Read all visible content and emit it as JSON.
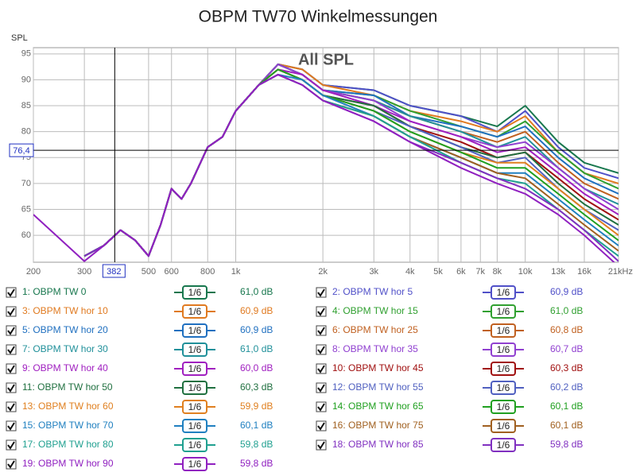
{
  "chart_data": {
    "type": "line",
    "title": "OBPM TW70 Winkelmessungen",
    "y_label": "SPL",
    "annotation": "All SPL",
    "xscale": "log",
    "grid": true,
    "xlim": [
      200,
      21000
    ],
    "ylim": [
      54.8,
      96.2
    ],
    "xticks": [
      200,
      300,
      500,
      600,
      800,
      {
        "value": 1000,
        "label": "1k"
      },
      {
        "value": 2000,
        "label": "2k"
      },
      {
        "value": 3000,
        "label": "3k"
      },
      {
        "value": 4000,
        "label": "4k"
      },
      {
        "value": 5000,
        "label": "5k"
      },
      {
        "value": 6000,
        "label": "6k"
      },
      {
        "value": 7000,
        "label": "7k"
      },
      {
        "value": 8000,
        "label": "8k"
      },
      {
        "value": 10000,
        "label": "10k"
      },
      {
        "value": 13000,
        "label": "13k"
      },
      {
        "value": 16000,
        "label": "16k"
      },
      {
        "value": 21000,
        "label": "21kHz"
      }
    ],
    "yticks": [
      60,
      65,
      70,
      75,
      80,
      85,
      90,
      95
    ],
    "smoothing": "1/6",
    "cursor": {
      "x": 382,
      "y": 76.4,
      "y_label": "76,4"
    },
    "x": [
      200,
      300,
      350,
      400,
      450,
      500,
      550,
      600,
      650,
      700,
      800,
      900,
      1000,
      1200,
      1400,
      1700,
      2000,
      3000,
      4000,
      6000,
      8000,
      10000,
      13000,
      16000,
      21000
    ],
    "series": [
      {
        "name": "1: OBPM TW 0",
        "color": "#18774e",
        "level": "61,0 dB",
        "values": [
          null,
          56,
          58,
          61,
          59,
          56,
          62,
          69,
          67,
          70,
          77,
          79,
          84,
          89,
          93,
          92,
          89,
          88,
          85,
          83,
          81,
          85,
          78,
          74,
          72
        ]
      },
      {
        "name": "2: OBPM TW hor 5",
        "color": "#5050c8",
        "level": "60,9 dB",
        "values": [
          null,
          56,
          58,
          61,
          59,
          56,
          62,
          69,
          67,
          70,
          77,
          79,
          84,
          89,
          93,
          92,
          89,
          88,
          85,
          83,
          80,
          84,
          77,
          73,
          71
        ]
      },
      {
        "name": "3: OBPM TW hor 10",
        "color": "#e07a20",
        "level": "60,9 dB",
        "values": [
          null,
          56,
          58,
          61,
          59,
          56,
          62,
          69,
          67,
          70,
          77,
          79,
          84,
          89,
          93,
          92,
          89,
          87,
          84,
          82,
          80,
          83,
          76,
          72,
          70
        ]
      },
      {
        "name": "4: OBPM TW hor 15",
        "color": "#30a030",
        "level": "61,0 dB",
        "values": [
          null,
          56,
          58,
          61,
          59,
          56,
          62,
          69,
          67,
          70,
          77,
          79,
          84,
          89,
          93,
          91,
          88,
          87,
          84,
          81,
          79,
          82,
          76,
          72,
          69
        ]
      },
      {
        "name": "5: OBPM TW hor 20",
        "color": "#2070c0",
        "level": "60,9 dB",
        "values": [
          null,
          56,
          58,
          61,
          59,
          56,
          62,
          69,
          67,
          70,
          77,
          79,
          84,
          89,
          93,
          91,
          88,
          87,
          83,
          81,
          79,
          81,
          75,
          71,
          68
        ]
      },
      {
        "name": "6: OBPM TW hor 25",
        "color": "#c06020",
        "level": "60,8 dB",
        "values": [
          null,
          56,
          58,
          61,
          59,
          56,
          62,
          69,
          67,
          70,
          77,
          79,
          84,
          89,
          93,
          91,
          88,
          86,
          83,
          80,
          78,
          80,
          74,
          70,
          67
        ]
      },
      {
        "name": "7: OBPM TW hor 30",
        "color": "#20909a",
        "level": "61,0 dB",
        "values": [
          null,
          56,
          58,
          61,
          59,
          56,
          62,
          69,
          67,
          70,
          77,
          79,
          84,
          89,
          93,
          91,
          88,
          86,
          83,
          80,
          77,
          79,
          73,
          69,
          66
        ]
      },
      {
        "name": "8: OBPM TW hor 35",
        "color": "#9040d0",
        "level": "60,7 dB",
        "values": [
          null,
          56,
          58,
          61,
          59,
          56,
          62,
          69,
          67,
          70,
          77,
          79,
          84,
          89,
          93,
          91,
          88,
          86,
          82,
          79,
          77,
          78,
          73,
          69,
          65
        ]
      },
      {
        "name": "9: OBPM TW hor 40",
        "color": "#a020c0",
        "level": "60,0 dB",
        "values": [
          null,
          56,
          58,
          61,
          59,
          56,
          62,
          69,
          67,
          70,
          77,
          79,
          84,
          89,
          92,
          91,
          88,
          85,
          82,
          79,
          76,
          77,
          72,
          68,
          64
        ]
      },
      {
        "name": "10: OBPM TW hor 45",
        "color": "#a01010",
        "level": "60,3 dB",
        "values": [
          null,
          56,
          58,
          61,
          59,
          56,
          62,
          69,
          67,
          70,
          77,
          79,
          84,
          89,
          92,
          90,
          87,
          85,
          81,
          78,
          75,
          76,
          71,
          67,
          63
        ]
      },
      {
        "name": "11: OBPM TW hor 50",
        "color": "#207040",
        "level": "60,3 dB",
        "values": [
          null,
          56,
          58,
          61,
          59,
          56,
          62,
          69,
          67,
          70,
          77,
          79,
          84,
          89,
          92,
          90,
          87,
          85,
          81,
          77,
          75,
          76,
          70,
          66,
          62
        ]
      },
      {
        "name": "12: OBPM TW hor 55",
        "color": "#5060c0",
        "level": "60,2 dB",
        "values": [
          null,
          56,
          58,
          61,
          59,
          56,
          62,
          69,
          67,
          70,
          77,
          79,
          84,
          89,
          92,
          90,
          87,
          84,
          81,
          77,
          74,
          75,
          69,
          65,
          61
        ]
      },
      {
        "name": "13: OBPM TW hor 60",
        "color": "#e08020",
        "level": "59,9 dB",
        "values": [
          null,
          56,
          58,
          61,
          59,
          56,
          62,
          69,
          67,
          70,
          77,
          79,
          84,
          89,
          92,
          90,
          87,
          84,
          80,
          76,
          74,
          74,
          69,
          65,
          60
        ]
      },
      {
        "name": "14: OBPM TW hor 65",
        "color": "#20a020",
        "level": "60,1 dB",
        "values": [
          null,
          56,
          58,
          61,
          59,
          56,
          62,
          69,
          67,
          70,
          77,
          79,
          84,
          89,
          92,
          90,
          87,
          84,
          80,
          76,
          73,
          73,
          68,
          64,
          59
        ]
      },
      {
        "name": "15: OBPM TW hor 70",
        "color": "#2080c0",
        "level": "60,1 dB",
        "values": [
          null,
          56,
          58,
          61,
          59,
          56,
          62,
          69,
          67,
          70,
          77,
          79,
          84,
          89,
          91,
          90,
          87,
          83,
          79,
          75,
          72,
          72,
          67,
          63,
          58
        ]
      },
      {
        "name": "16: OBPM TW hor 75",
        "color": "#a06020",
        "level": "60,1 dB",
        "values": [
          null,
          56,
          58,
          61,
          59,
          56,
          62,
          69,
          67,
          70,
          77,
          79,
          84,
          89,
          91,
          89,
          86,
          83,
          79,
          75,
          72,
          71,
          66,
          62,
          57
        ]
      },
      {
        "name": "17: OBPM TW hor 80",
        "color": "#20a090",
        "level": "59,8 dB",
        "values": [
          null,
          56,
          58,
          61,
          59,
          56,
          62,
          69,
          67,
          70,
          77,
          79,
          84,
          89,
          91,
          89,
          86,
          83,
          79,
          74,
          71,
          70,
          65,
          61,
          56
        ]
      },
      {
        "name": "18: OBPM TW hor 85",
        "color": "#8030c0",
        "level": "59,8 dB",
        "values": [
          null,
          56,
          58,
          61,
          59,
          56,
          62,
          69,
          67,
          70,
          77,
          79,
          84,
          89,
          91,
          89,
          86,
          82,
          78,
          74,
          71,
          69,
          65,
          61,
          55
        ]
      },
      {
        "name": "19: OBPM TW hor 90",
        "color": "#9020c0",
        "level": "59,8 dB",
        "values": [
          64,
          55,
          58,
          61,
          59,
          56,
          62,
          69,
          67,
          70,
          77,
          79,
          84,
          89,
          91,
          89,
          86,
          82,
          78,
          73,
          70,
          68,
          64,
          60,
          54
        ]
      }
    ]
  }
}
